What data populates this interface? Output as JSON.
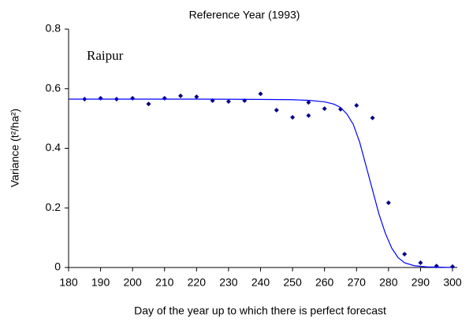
{
  "chart_data": {
    "type": "scatter",
    "title": "Reference Year (1993)",
    "x_label": "Day of the year up to which there is perfect forecast",
    "y_label": "Variance (t²/ha²)",
    "annotation": "Raipur",
    "xlim": [
      180,
      300
    ],
    "xticks": [
      180,
      190,
      200,
      210,
      220,
      230,
      240,
      250,
      260,
      270,
      280,
      290,
      300
    ],
    "ylim": [
      0,
      0.8
    ],
    "yticks": [
      0,
      0.2,
      0.4,
      0.6,
      0.8
    ],
    "series": [
      {
        "type": "scatter",
        "color": "#000080",
        "x": [
          185,
          190,
          195,
          200,
          205,
          210,
          215,
          220,
          225,
          230,
          235,
          240,
          245,
          250,
          255,
          255,
          260,
          265,
          270,
          275,
          280,
          285,
          290,
          295,
          300
        ],
        "values": [
          0.565,
          0.568,
          0.565,
          0.568,
          0.549,
          0.568,
          0.576,
          0.573,
          0.56,
          0.557,
          0.56,
          0.583,
          0.528,
          0.504,
          0.51,
          0.554,
          0.533,
          0.531,
          0.544,
          0.502,
          0.217,
          0.045,
          0.016,
          0.005,
          0.003
        ]
      },
      {
        "type": "line",
        "color": "#0000ff",
        "x": [
          180,
          200,
          220,
          240,
          250,
          255,
          260,
          263,
          265,
          267,
          269,
          271,
          273,
          275,
          277,
          279,
          281,
          283,
          285,
          288,
          292,
          300
        ],
        "values": [
          0.565,
          0.565,
          0.565,
          0.564,
          0.563,
          0.561,
          0.556,
          0.548,
          0.537,
          0.515,
          0.48,
          0.42,
          0.34,
          0.26,
          0.18,
          0.115,
          0.065,
          0.033,
          0.016,
          0.006,
          0.002,
          0
        ]
      }
    ]
  }
}
